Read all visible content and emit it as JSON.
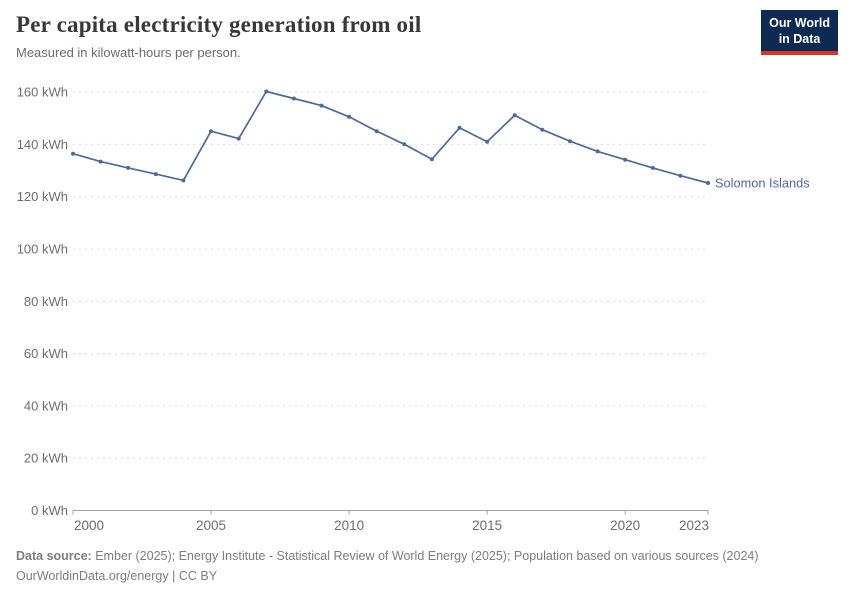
{
  "header": {
    "title": "Per capita electricity generation from oil",
    "subtitle": "Measured in kilowatt-hours per person.",
    "logo": {
      "line1": "Our World",
      "line2": "in Data"
    }
  },
  "chart_data": {
    "type": "line",
    "title": "Per capita electricity generation from oil",
    "unit": "kWh",
    "series": [
      {
        "name": "Solomon Islands",
        "x": [
          2000,
          2001,
          2002,
          2003,
          2004,
          2005,
          2006,
          2007,
          2008,
          2009,
          2010,
          2011,
          2012,
          2013,
          2014,
          2015,
          2016,
          2017,
          2018,
          2019,
          2020,
          2021,
          2022,
          2023
        ],
        "values": [
          136.4,
          133.4,
          131.0,
          128.6,
          126.2,
          145.0,
          142.2,
          160.2,
          157.5,
          154.8,
          150.5,
          145.0,
          140.0,
          134.3,
          146.3,
          141.0,
          151.1,
          145.6,
          141.2,
          137.3,
          134.1,
          131.0,
          128.0,
          125.2
        ]
      }
    ],
    "xlim": [
      2000,
      2023
    ],
    "ylim": [
      0,
      160
    ],
    "xticks": [
      2000,
      2005,
      2010,
      2015,
      2020,
      2023
    ],
    "xtick_labels": [
      "2000",
      "2005",
      "2010",
      "2015",
      "2020",
      "2023"
    ],
    "yticks": [
      0,
      20,
      40,
      60,
      80,
      100,
      120,
      140,
      160
    ],
    "ytick_labels": [
      "0 kWh",
      "20 kWh",
      "40 kWh",
      "60 kWh",
      "80 kWh",
      "100 kWh",
      "120 kWh",
      "140 kWh",
      "160 kWh"
    ],
    "grid": "dashed-horizontal",
    "legend_position": "end-of-line-label",
    "end_label": "Solomon Islands"
  },
  "colors": {
    "line": "#4C6A9C",
    "grid": "#dcdcdc",
    "axis": "#a1a1a1",
    "tick_text": "#6e6e6e",
    "title": "#383838",
    "subtitle": "#6b6b6b",
    "footer": "#7d7d7d",
    "logo_bg": "#0d2a52",
    "logo_accent": "#d8352a"
  },
  "footer": {
    "source_label": "Data source:",
    "sources": "Ember (2025); Energy Institute - Statistical Review of World Energy (2025); Population based on various sources (2024)",
    "url": "OurWorldinData.org/energy",
    "separator": " | ",
    "license": "CC BY"
  }
}
